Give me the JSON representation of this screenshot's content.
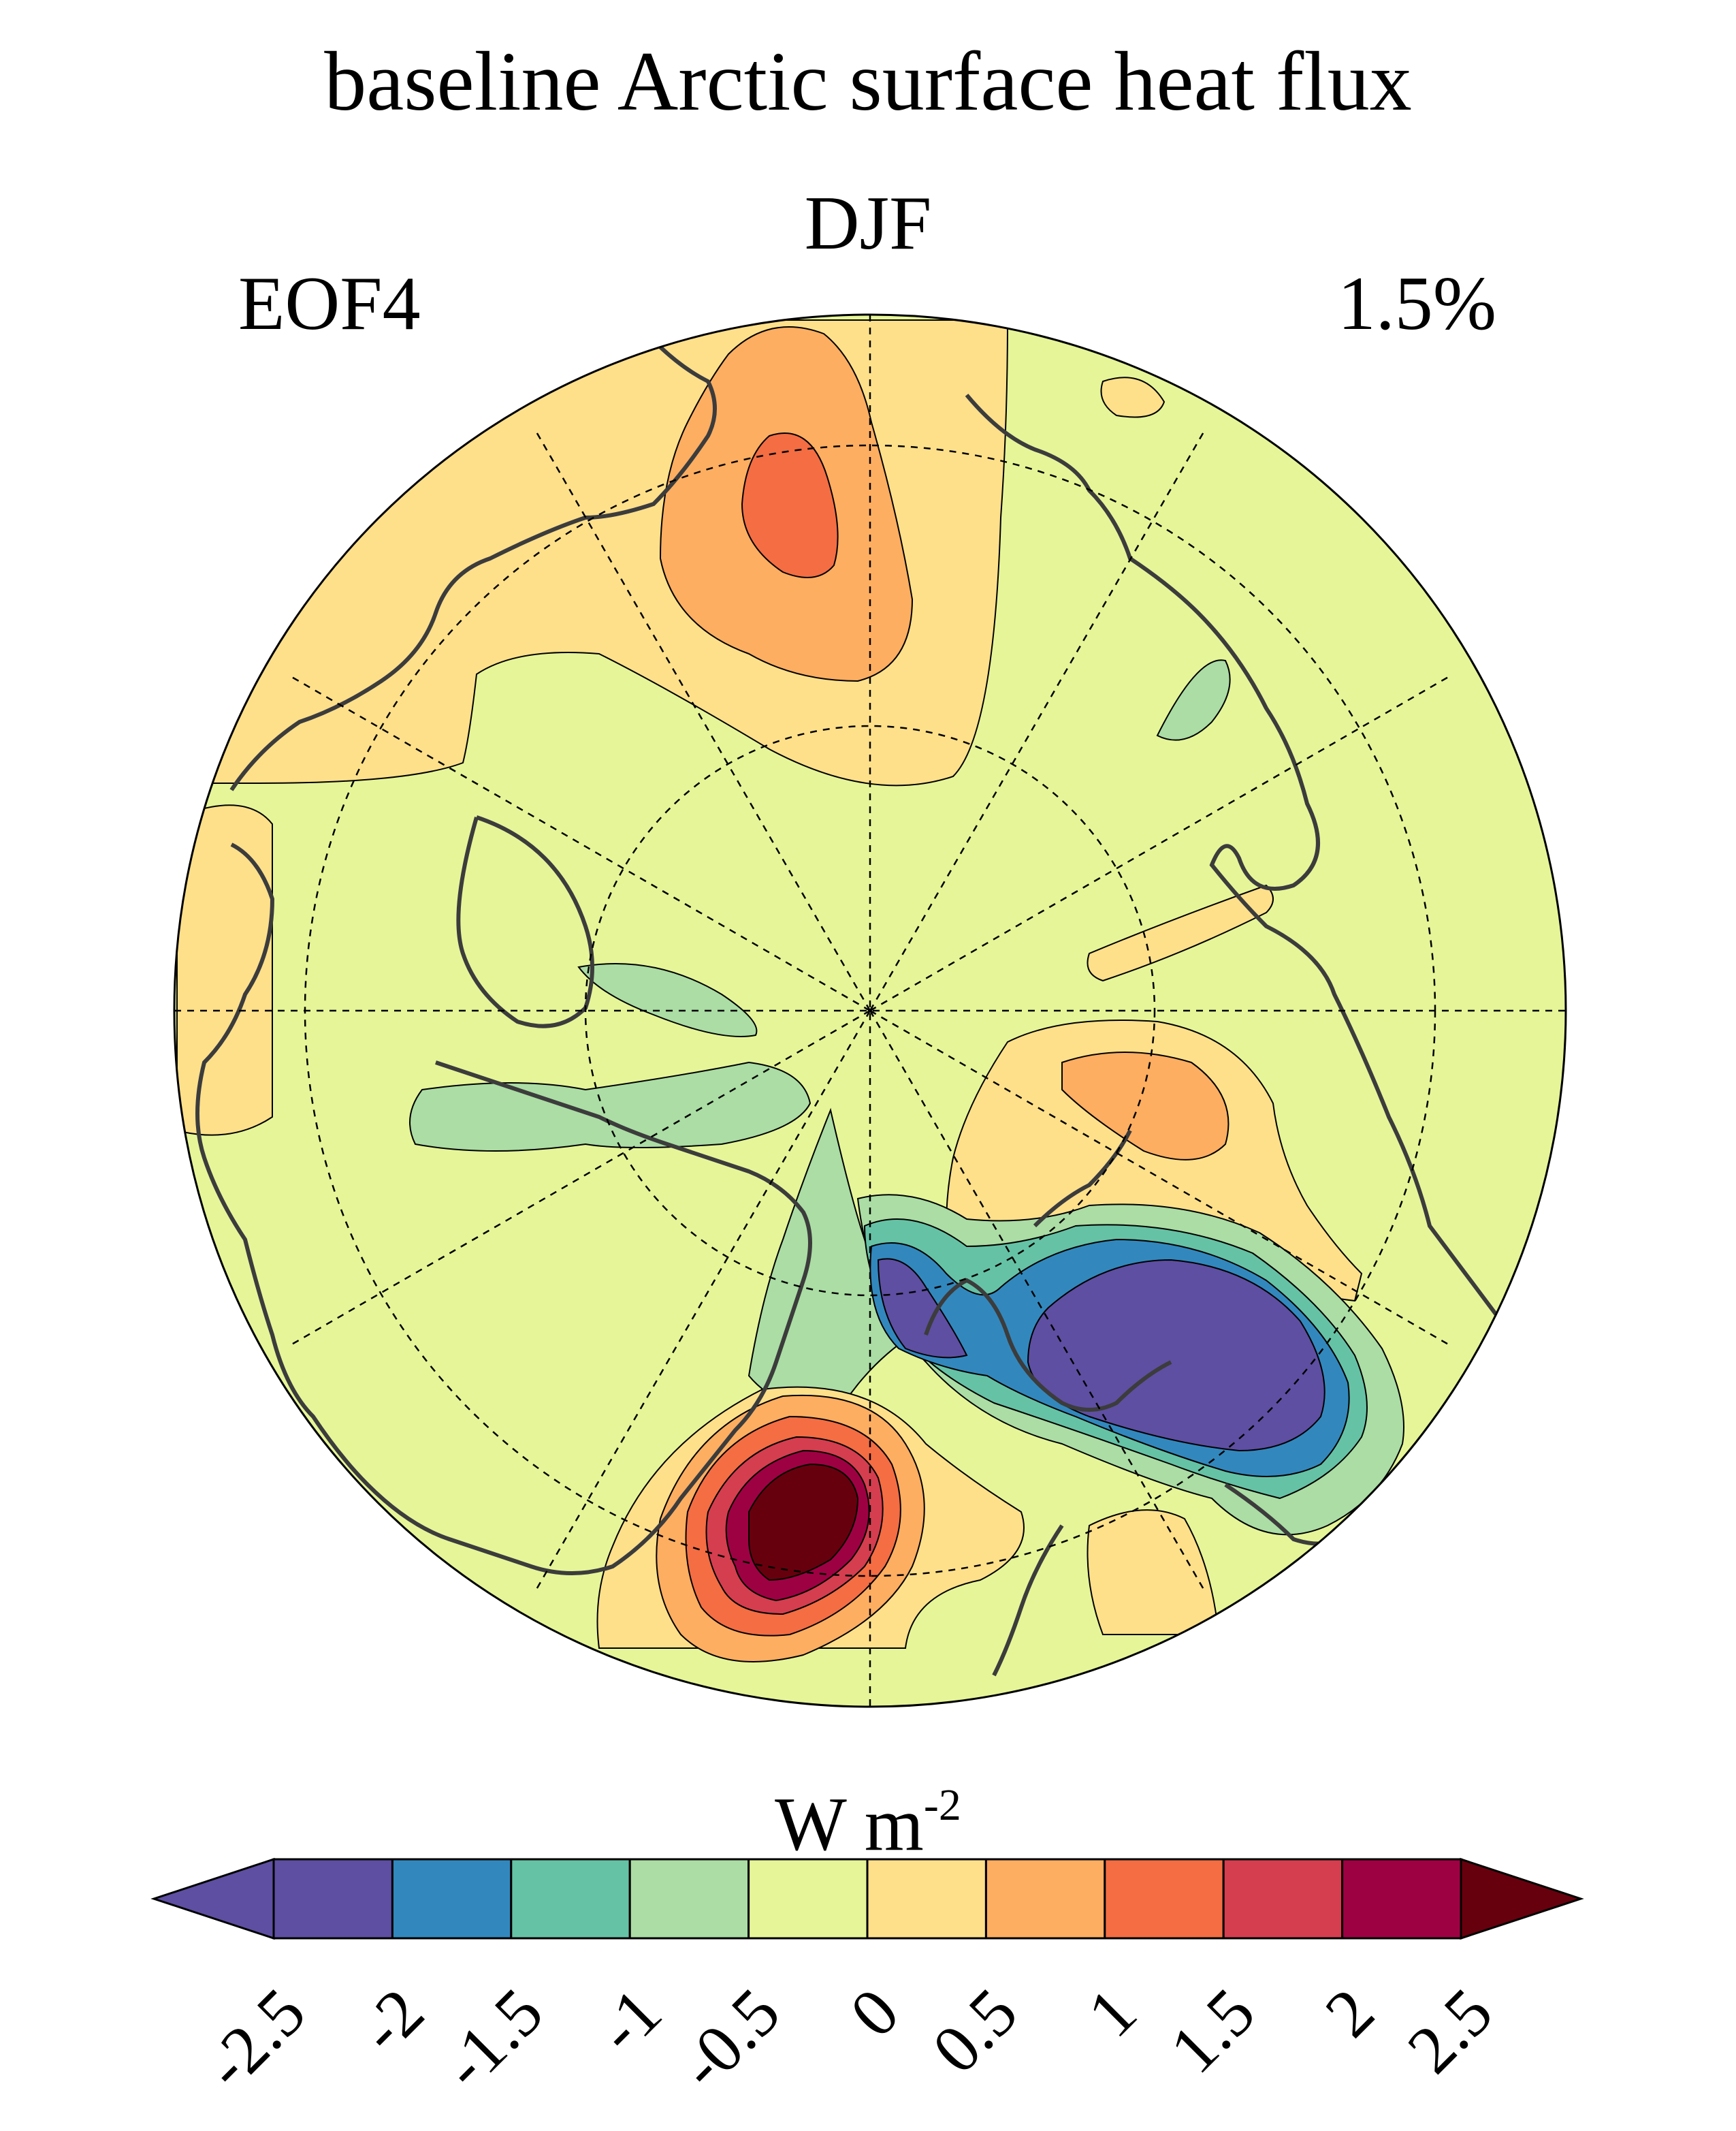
{
  "map": {
    "title": "baseline Arctic surface heat flux",
    "season": "DJF",
    "mode": "EOF4",
    "variance": "1.5%",
    "projection": "north polar stereographic",
    "units_base": "W m",
    "units_exp": "-2"
  },
  "colorbar": {
    "levels": [
      "-2.5",
      "-2",
      "-1.5",
      "-1",
      "-0.5",
      "0",
      "0.5",
      "1",
      "1.5",
      "2",
      "2.5"
    ],
    "colors": [
      "#5e4fa2",
      "#5e4fa2",
      "#3288bd",
      "#66c2a5",
      "#abdda4",
      "#e6f598",
      "#fee08b",
      "#fdae61",
      "#f46d43",
      "#d53e4f",
      "#9e0142",
      "#67000d"
    ],
    "extend": "both"
  },
  "colors": {
    "coast": "#3c3c3c",
    "grid": "#000000"
  }
}
